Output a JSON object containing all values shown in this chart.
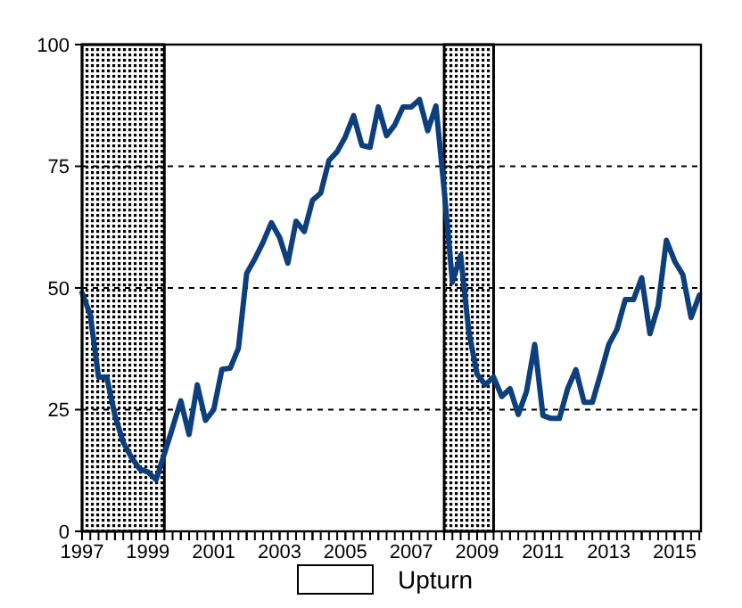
{
  "chart_data": {
    "type": "line",
    "x": [
      1997,
      1997.25,
      1997.5,
      1997.75,
      1998,
      1998.25,
      1998.5,
      1998.75,
      1999,
      1999.25,
      1999.5,
      1999.75,
      2000,
      2000.25,
      2000.5,
      2000.75,
      2001,
      2001.25,
      2001.5,
      2001.75,
      2002,
      2002.25,
      2002.5,
      2002.75,
      2003,
      2003.25,
      2003.5,
      2003.75,
      2004,
      2004.25,
      2004.5,
      2004.75,
      2005,
      2005.25,
      2005.5,
      2005.75,
      2006,
      2006.25,
      2006.5,
      2006.75,
      2007,
      2007.25,
      2007.5,
      2007.75,
      2008,
      2008.25,
      2008.5,
      2008.75,
      2009,
      2009.25,
      2009.5,
      2009.75,
      2010,
      2010.25,
      2010.5,
      2010.75,
      2011,
      2011.25,
      2011.5,
      2011.75,
      2012,
      2012.25,
      2012.5,
      2012.75,
      2013,
      2013.25,
      2013.5,
      2013.75,
      2014,
      2014.25,
      2014.5,
      2014.75,
      2015,
      2015.25,
      2015.5,
      2015.75
    ],
    "series": [
      {
        "color": "#0d3f7c",
        "values": [
          49,
          44.5,
          31.7,
          31.7,
          23.8,
          18.3,
          15.2,
          12.8,
          12.2,
          10.6,
          15.9,
          21.3,
          26.8,
          19.9,
          30.1,
          22.8,
          25,
          33.3,
          33.5,
          37.6,
          53,
          56,
          59.4,
          63.4,
          60.4,
          55.1,
          63.7,
          61.6,
          68,
          69.5,
          76.2,
          78,
          81.1,
          85.4,
          79.3,
          78.9,
          87.2,
          81.3,
          83.5,
          87.2,
          87.2,
          88.7,
          82.3,
          87.4,
          70.1,
          51.2,
          56.7,
          40.9,
          32.3,
          30.1,
          31.7,
          27.7,
          29.3,
          24,
          28.7,
          38.4,
          23.8,
          23.2,
          23.2,
          29.3,
          33.2,
          26.5,
          26.5,
          32.3,
          38.4,
          41.5,
          47.6,
          47.6,
          52.1,
          40.6,
          46.3,
          59.8,
          55.5,
          52.7,
          43.9,
          48.5
        ]
      }
    ],
    "xlim": [
      1997,
      2015.8
    ],
    "xticks": [
      1997,
      {
        "value": 1998,
        "label": null
      },
      1999,
      {
        "value": 2000,
        "label": null
      },
      2001,
      {
        "value": 2002,
        "label": null
      },
      2003,
      {
        "value": 2004,
        "label": null
      },
      2005,
      {
        "value": 2006,
        "label": null
      },
      2007,
      {
        "value": 2008,
        "label": null
      },
      2009,
      {
        "value": 2010,
        "label": null
      },
      2011,
      {
        "value": 2012,
        "label": null
      },
      2013,
      {
        "value": 2014,
        "label": null
      },
      2015
    ],
    "ylim": [
      0,
      100
    ],
    "yticks": [
      0,
      25,
      50,
      75,
      100
    ],
    "grid": "y",
    "bands": [
      {
        "axis": "x",
        "from": 1997,
        "to": 1999.5,
        "color": "#000000"
      },
      {
        "axis": "x",
        "from": 2008,
        "to": 2009.5,
        "color": "#000000"
      }
    ],
    "annotations": [
      "Upturn"
    ]
  }
}
